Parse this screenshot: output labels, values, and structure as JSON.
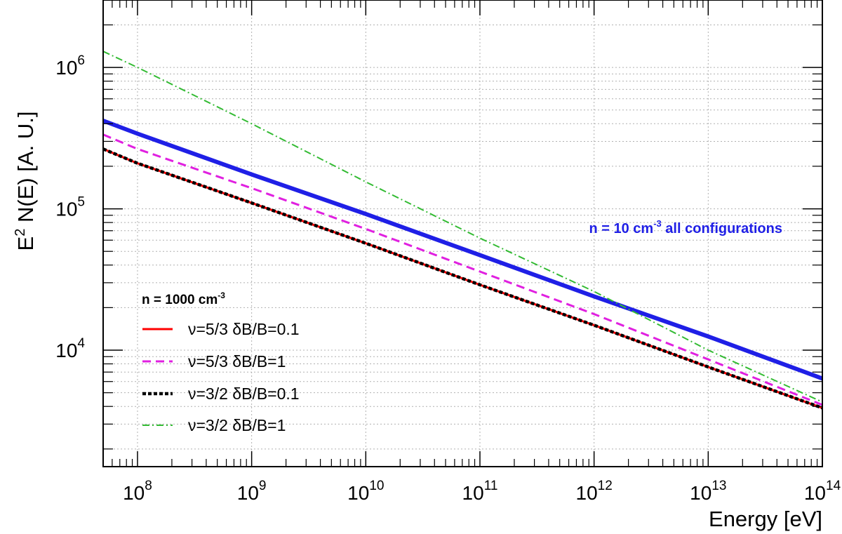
{
  "chart_data": {
    "type": "line",
    "title": "",
    "xlabel": "Energy [eV]",
    "ylabel": {
      "base": "E",
      "sup": "2",
      "rest": " N(E) [A. U.]"
    },
    "x_scale": "log",
    "y_scale": "log",
    "xlim": [
      50000000,
      100000000000000
    ],
    "ylim": [
      1500,
      3000000
    ],
    "grid": true,
    "x_ticks": [
      {
        "value": 100000000,
        "base": "10",
        "exp": "8"
      },
      {
        "value": 1000000000,
        "base": "10",
        "exp": "9"
      },
      {
        "value": 10000000000,
        "base": "10",
        "exp": "10"
      },
      {
        "value": 100000000000,
        "base": "10",
        "exp": "11"
      },
      {
        "value": 1000000000000,
        "base": "10",
        "exp": "12"
      },
      {
        "value": 10000000000000,
        "base": "10",
        "exp": "13"
      },
      {
        "value": 100000000000000,
        "base": "10",
        "exp": "14"
      }
    ],
    "y_ticks": [
      {
        "value": 10000,
        "base": "10",
        "exp": "4"
      },
      {
        "value": 100000,
        "base": "10",
        "exp": "5"
      },
      {
        "value": 1000000,
        "base": "10",
        "exp": "6"
      }
    ],
    "legend": {
      "placement": "lower-left",
      "header": {
        "base": "n = 1000 cm",
        "sup": "-3"
      }
    },
    "annotations": [
      {
        "base": "n = 10 cm",
        "sup": "-3",
        "rest": " all configurations",
        "color": "#1f1fe6",
        "at": [
          100000000000000,
          40000
        ]
      }
    ],
    "series": [
      {
        "name": "ν=5/3  δB/B=0.1",
        "color": "#ff0000",
        "dash": "solid",
        "in_legend": true,
        "x": [
          50000000,
          100000000,
          1000000000,
          10000000000,
          100000000000,
          1000000000000,
          10000000000000,
          100000000000000
        ],
        "y": [
          265000,
          210000,
          110000,
          57000,
          29000,
          15000,
          7600,
          3900
        ]
      },
      {
        "name": "ν=5/3  δB/B=1",
        "color": "#e020e0",
        "dash": "dashed",
        "in_legend": true,
        "x": [
          50000000,
          100000000,
          1000000000,
          10000000000,
          100000000000,
          1000000000000,
          10000000000000,
          100000000000000
        ],
        "y": [
          335000,
          265000,
          140000,
          72000,
          36000,
          18000,
          8600,
          4100
        ]
      },
      {
        "name": "ν=3/2  δB/B=0.1",
        "color": "#000000",
        "dash": "dotted",
        "in_legend": true,
        "x": [
          50000000,
          100000000,
          1000000000,
          10000000000,
          100000000000,
          1000000000000,
          10000000000000,
          100000000000000
        ],
        "y": [
          265000,
          210000,
          110000,
          57000,
          29000,
          15000,
          7600,
          3900
        ]
      },
      {
        "name": "ν=3/2  δB/B=1",
        "color": "#33bb33",
        "dash": "dashdot",
        "in_legend": true,
        "x": [
          50000000,
          100000000,
          1000000000,
          10000000000,
          100000000000,
          1000000000000,
          10000000000000,
          100000000000000
        ],
        "y": [
          1300000,
          1000000,
          400000,
          155000,
          62000,
          26000,
          10000,
          4300
        ]
      },
      {
        "name": "n = 10 cm-3 all configurations",
        "color": "#1f1fe6",
        "dash": "thick",
        "in_legend": false,
        "x": [
          50000000,
          100000000,
          1000000000,
          10000000000,
          100000000000,
          1000000000000,
          10000000000000,
          100000000000000
        ],
        "y": [
          420000,
          340000,
          175000,
          92000,
          47000,
          24000,
          12500,
          6300
        ]
      }
    ]
  }
}
